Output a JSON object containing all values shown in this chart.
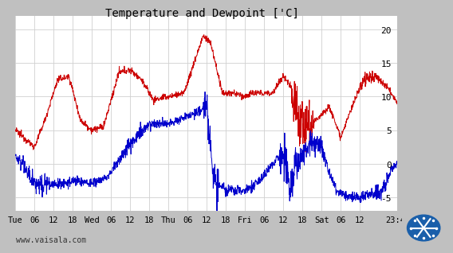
{
  "title": "Temperature and Dewpoint ['C]",
  "background_color": "#c0c0c0",
  "plot_bg_color": "#ffffff",
  "grid_color": "#d0d0d0",
  "temp_color": "#cc0000",
  "dew_color": "#0000cc",
  "line_width": 0.7,
  "ylim": [
    -7,
    22
  ],
  "yticks": [
    -5,
    0,
    5,
    10,
    15,
    20
  ],
  "x_labels": [
    "Tue",
    "06",
    "12",
    "18",
    "Wed",
    "06",
    "12",
    "18",
    "Thu",
    "06",
    "12",
    "18",
    "Fri",
    "06",
    "12",
    "18",
    "Sat",
    "06",
    "12",
    "23:45"
  ],
  "x_tick_pos": [
    0,
    0.25,
    0.5,
    0.75,
    1.0,
    1.25,
    1.5,
    1.75,
    2.0,
    2.25,
    2.5,
    2.75,
    3.0,
    3.25,
    3.5,
    3.75,
    4.0,
    4.25,
    4.5,
    4.9896
  ],
  "watermark": "www.vaisala.com",
  "title_fontsize": 10,
  "tick_fontsize": 7.5,
  "watermark_fontsize": 7
}
